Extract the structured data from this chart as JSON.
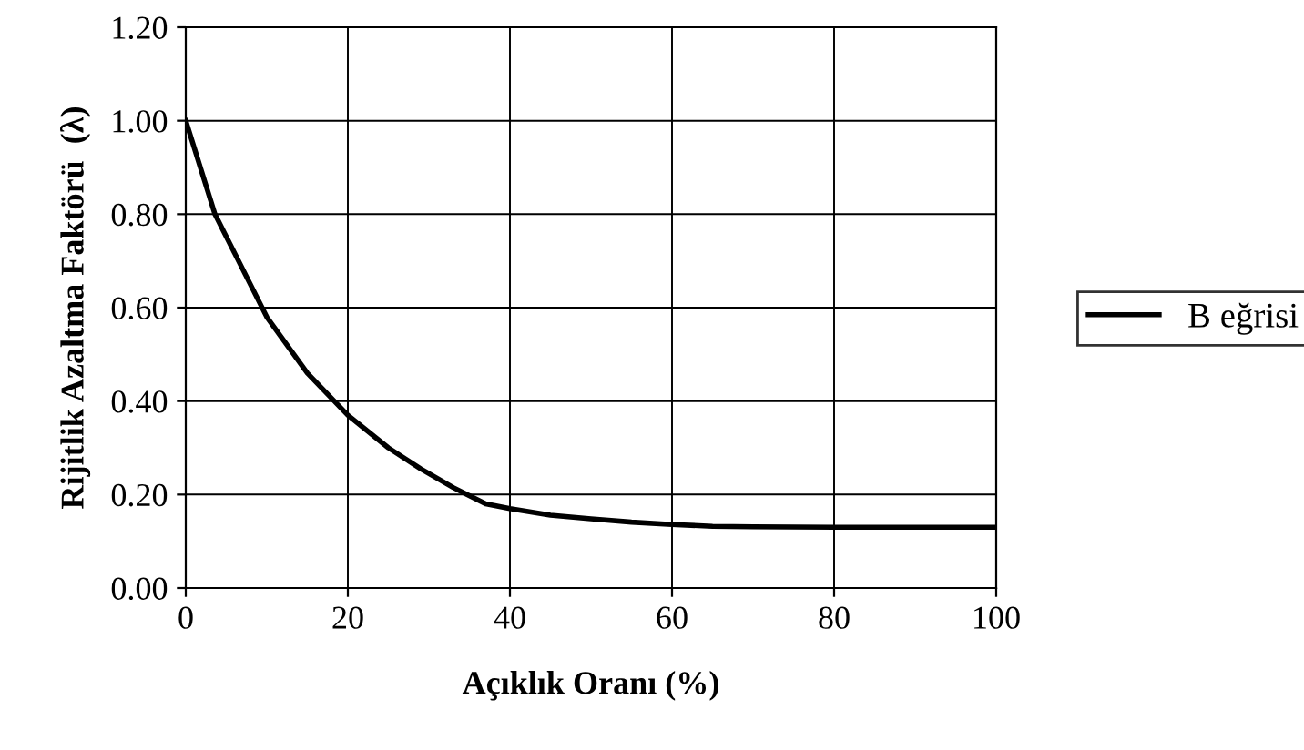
{
  "chart_data": {
    "type": "line",
    "xlabel": "Açıklık Oranı (%)",
    "ylabel": "Rijitlik Azaltma Faktörü  (λ)",
    "series": [
      {
        "name": "B eğrisi",
        "color": "#000000",
        "x": [
          0,
          3.6,
          10,
          15,
          20,
          25,
          29,
          33,
          37,
          40,
          45,
          50,
          55,
          60,
          65,
          70,
          80,
          90,
          100
        ],
        "values": [
          1.0,
          0.8,
          0.58,
          0.46,
          0.37,
          0.3,
          0.255,
          0.215,
          0.18,
          0.17,
          0.156,
          0.148,
          0.141,
          0.136,
          0.132,
          0.131,
          0.13,
          0.13,
          0.13
        ]
      }
    ],
    "xlim": [
      0,
      100
    ],
    "ylim": [
      0,
      1.2
    ],
    "xticks": [
      0,
      20,
      40,
      60,
      80,
      100
    ],
    "yticks": [
      {
        "value": 0,
        "label": "0.00"
      },
      {
        "value": 0.2,
        "label": "0.20"
      },
      {
        "value": 0.4,
        "label": "0.40"
      },
      {
        "value": 0.6,
        "label": "0.60"
      },
      {
        "value": 0.8,
        "label": "0.80"
      },
      {
        "value": 1.0,
        "label": "1.00"
      },
      {
        "value": 1.2,
        "label": "1.20"
      }
    ],
    "grid": true,
    "legend": "right",
    "marker": "none",
    "line_style": "solid"
  }
}
